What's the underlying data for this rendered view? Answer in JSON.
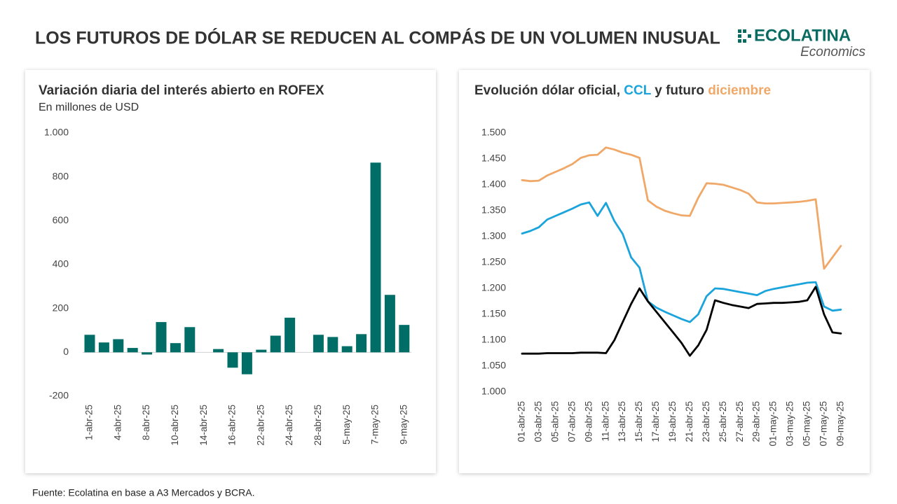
{
  "header": {
    "title": "LOS FUTUROS DE DÓLAR SE REDUCEN AL COMPÁS DE UN VOLUMEN INUSUAL",
    "brand": "ECOLATINA",
    "brand_sub": "Economics"
  },
  "footer": {
    "source": "Fuente: Ecolatina en base a A3 Mercados y BCRA."
  },
  "chart_data": [
    {
      "type": "bar",
      "title": "Variación diaria del interés abierto en ROFEX",
      "subtitle": "En millones de USD",
      "categories": [
        "1-abr-25",
        null,
        "4-abr-25",
        null,
        "8-abr-25",
        null,
        "10-abr-25",
        null,
        "14-abr-25",
        null,
        "16-abr-25",
        null,
        "22-abr-25",
        null,
        "24-abr-25",
        null,
        "28-abr-25",
        null,
        "5-may-25",
        null,
        "7-may-25",
        null,
        "9-may-25"
      ],
      "values": [
        80,
        45,
        60,
        20,
        -10,
        138,
        42,
        115,
        null,
        15,
        -70,
        -100,
        12,
        76,
        158,
        null,
        80,
        70,
        28,
        83,
        865,
        262,
        125
      ],
      "color": "#006e67",
      "ylim": [
        -200,
        1000
      ],
      "yticks": [
        -200,
        0,
        200,
        400,
        600,
        {
          "value": 1000,
          "label": "1.000"
        },
        800
      ],
      "grid": false
    },
    {
      "type": "line",
      "title": [
        {
          "text": "Evolución dólar oficial, ",
          "color": "#333333"
        },
        {
          "text": "CCL",
          "color": "#1ba4dc"
        },
        {
          "text": " y futuro ",
          "color": "#333333"
        },
        {
          "text": "diciembre",
          "color": "#f0a868"
        }
      ],
      "categories": [
        "01-abr-25",
        null,
        "03-abr-25",
        null,
        "05-abr-25",
        null,
        "07-abr-25",
        null,
        "09-abr-25",
        null,
        "11-abr-25",
        null,
        "13-abr-25",
        null,
        "15-abr-25",
        null,
        "17-abr-25",
        null,
        "19-abr-25",
        null,
        "21-abr-25",
        null,
        "23-abr-25",
        null,
        "25-abr-25",
        null,
        "27-abr-25",
        null,
        "29-abr-25",
        null,
        "01-may-25",
        null,
        "03-may-25",
        null,
        "05-may-25",
        null,
        "07-may-25",
        null,
        "09-may-25"
      ],
      "series": [
        {
          "color": "#f0a868",
          "values": [
            1409,
            1407,
            1408,
            1418,
            1425,
            1432,
            1440,
            1452,
            1457,
            1458,
            1472,
            1468,
            1462,
            1458,
            1452,
            1370,
            1358,
            1350,
            1345,
            1341,
            1340,
            1375,
            1403,
            1402,
            1400,
            1395,
            1390,
            1383,
            1366,
            1364,
            1364,
            1365,
            1366,
            1367,
            1369,
            1372,
            1238,
            1260,
            1282
          ]
        },
        {
          "color": "#1ba4dc",
          "values": [
            1306,
            1311,
            1318,
            1333,
            1340,
            1347,
            1354,
            1362,
            1366,
            1340,
            1365,
            1330,
            1305,
            1260,
            1240,
            1175,
            1163,
            1155,
            1148,
            1141,
            1135,
            1150,
            1185,
            1200,
            1199,
            1196,
            1193,
            1190,
            1187,
            1195,
            1199,
            1202,
            1205,
            1208,
            1211,
            1212,
            1165,
            1157,
            1159
          ]
        },
        {
          "color": "#000000",
          "values": [
            1074,
            1074,
            1074,
            1075,
            1075,
            1075,
            1075,
            1076,
            1076,
            1076,
            1075,
            1100,
            1135,
            1170,
            1200,
            1175,
            1155,
            1135,
            1115,
            1095,
            1070,
            1090,
            1120,
            1177,
            1172,
            1168,
            1165,
            1162,
            1170,
            1171,
            1172,
            1172,
            1173,
            1174,
            1177,
            1203,
            1150,
            1115,
            1113
          ]
        }
      ],
      "ylim": [
        1000,
        1500
      ],
      "yticks": [
        {
          "value": 1000,
          "label": "1.000"
        },
        {
          "value": 1050,
          "label": "1.050"
        },
        {
          "value": 1100,
          "label": "1.100"
        },
        {
          "value": 1150,
          "label": "1.150"
        },
        {
          "value": 1200,
          "label": "1.200"
        },
        {
          "value": 1250,
          "label": "1.250"
        },
        {
          "value": 1300,
          "label": "1.300"
        },
        {
          "value": 1350,
          "label": "1.350"
        },
        {
          "value": 1400,
          "label": "1.400"
        },
        {
          "value": 1450,
          "label": "1.450"
        },
        {
          "value": 1500,
          "label": "1.500"
        }
      ],
      "grid": false
    }
  ]
}
